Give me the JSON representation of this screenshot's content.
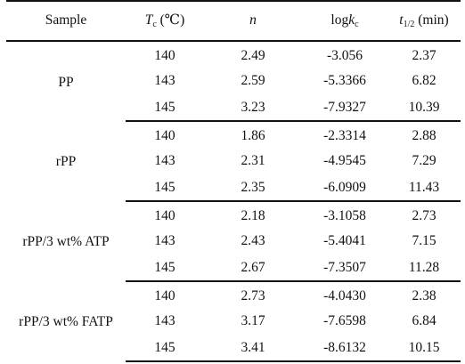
{
  "table": {
    "headers": {
      "sample": "Sample",
      "tc_var": "T",
      "tc_sub": "c",
      "tc_unit": "(℃)",
      "n": "n",
      "logk_prefix": "log",
      "logk_var": "k",
      "logk_sub": "c",
      "thalf_var": "t",
      "thalf_sub": "1/2",
      "thalf_unit": "(min)"
    },
    "groups": [
      {
        "sample": "PP",
        "rows": [
          {
            "tc": "140",
            "n": "2.49",
            "logk": "-3.056",
            "thalf": "2.37"
          },
          {
            "tc": "143",
            "n": "2.59",
            "logk": "-5.3366",
            "thalf": "6.82"
          },
          {
            "tc": "145",
            "n": "3.23",
            "logk": "-7.9327",
            "thalf": "10.39"
          }
        ]
      },
      {
        "sample": "rPP",
        "rows": [
          {
            "tc": "140",
            "n": "1.86",
            "logk": "-2.3314",
            "thalf": "2.88"
          },
          {
            "tc": "143",
            "n": "2.31",
            "logk": "-4.9545",
            "thalf": "7.29"
          },
          {
            "tc": "145",
            "n": "2.35",
            "logk": "-6.0909",
            "thalf": "11.43"
          }
        ]
      },
      {
        "sample": "rPP/3 wt% ATP",
        "rows": [
          {
            "tc": "140",
            "n": "2.18",
            "logk": "-3.1058",
            "thalf": "2.73"
          },
          {
            "tc": "143",
            "n": "2.43",
            "logk": "-5.4041",
            "thalf": "7.15"
          },
          {
            "tc": "145",
            "n": "2.67",
            "logk": "-7.3507",
            "thalf": "11.28"
          }
        ]
      },
      {
        "sample": "rPP/3 wt% FATP",
        "rows": [
          {
            "tc": "140",
            "n": "2.73",
            "logk": "-4.0430",
            "thalf": "2.38"
          },
          {
            "tc": "143",
            "n": "3.17",
            "logk": "-7.6598",
            "thalf": "6.84"
          },
          {
            "tc": "145",
            "n": "3.41",
            "logk": "-8.6132",
            "thalf": "10.15"
          }
        ]
      }
    ]
  }
}
